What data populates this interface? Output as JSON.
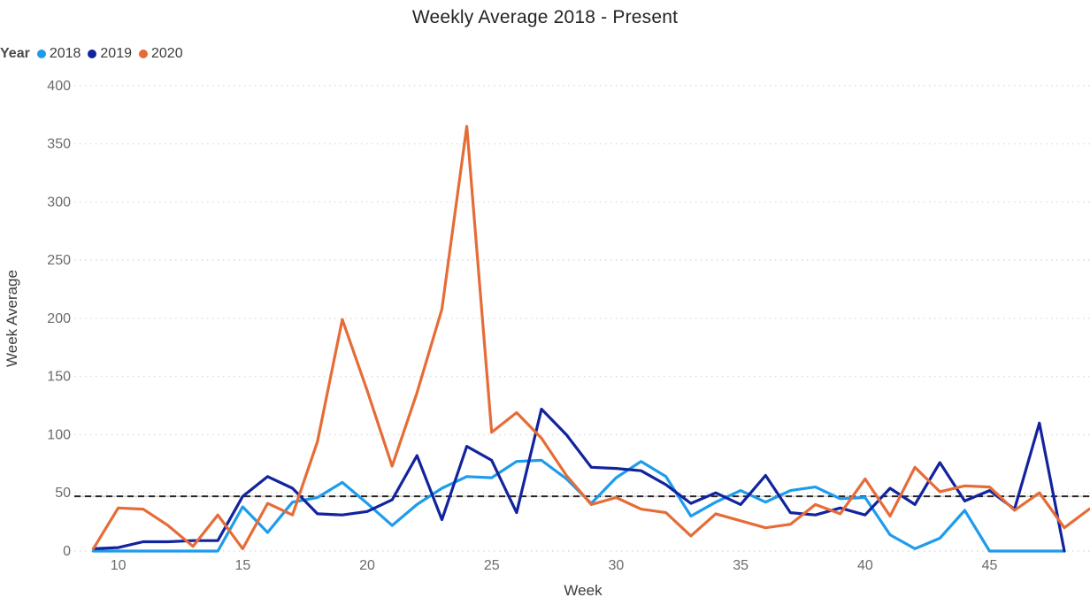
{
  "title": "Weekly Average 2018 - Present",
  "legend": {
    "title": "Year",
    "items": [
      {
        "label": "2018",
        "color": "#1E9CEB"
      },
      {
        "label": "2019",
        "color": "#12239E"
      },
      {
        "label": "2020",
        "color": "#E66C37"
      }
    ]
  },
  "chart_data": {
    "type": "line",
    "title": "Weekly Average 2018 - Present",
    "xlabel": "Week",
    "ylabel": "Week Average",
    "legend_title": "Year",
    "legend_position": "top-left",
    "grid": true,
    "gridline_style": "dotted",
    "xlim": [
      9,
      49
    ],
    "ylim": [
      0,
      400
    ],
    "x_ticks": [
      10,
      15,
      20,
      25,
      30,
      35,
      40,
      45
    ],
    "y_ticks": [
      0,
      50,
      100,
      150,
      200,
      250,
      300,
      350,
      400
    ],
    "reference_line": {
      "value": 47,
      "style": "dashed",
      "color": "#252423"
    },
    "series": [
      {
        "name": "2018",
        "color": "#1E9CEB",
        "x": [
          9,
          10,
          11,
          12,
          13,
          14,
          15,
          16,
          17,
          18,
          19,
          20,
          21,
          22,
          23,
          24,
          25,
          26,
          27,
          28,
          29,
          30,
          31,
          32,
          33,
          34,
          35,
          36,
          37,
          38,
          39,
          40,
          41,
          42,
          43,
          44,
          45,
          46,
          47,
          48
        ],
        "y": [
          0,
          0,
          0,
          0,
          0,
          0,
          38,
          16,
          42,
          46,
          59,
          41,
          22,
          40,
          54,
          64,
          63,
          77,
          78,
          62,
          41,
          63,
          77,
          64,
          30,
          42,
          52,
          42,
          52,
          55,
          45,
          46,
          14,
          2,
          11,
          35,
          0,
          0,
          0,
          0
        ]
      },
      {
        "name": "2019",
        "color": "#12239E",
        "x": [
          9,
          10,
          11,
          12,
          13,
          14,
          15,
          16,
          17,
          18,
          19,
          20,
          21,
          22,
          23,
          24,
          25,
          26,
          27,
          28,
          29,
          30,
          31,
          32,
          33,
          34,
          35,
          36,
          37,
          38,
          39,
          40,
          41,
          42,
          43,
          44,
          45,
          46,
          47,
          48
        ],
        "y": [
          2,
          3,
          8,
          8,
          9,
          9,
          47,
          64,
          54,
          32,
          31,
          34,
          44,
          82,
          27,
          90,
          78,
          33,
          122,
          100,
          72,
          71,
          69,
          57,
          41,
          50,
          40,
          65,
          33,
          31,
          37,
          31,
          54,
          40,
          76,
          43,
          52,
          36,
          110,
          0
        ]
      },
      {
        "name": "2020",
        "color": "#E66C37",
        "x": [
          9,
          10,
          11,
          12,
          13,
          14,
          15,
          16,
          17,
          18,
          19,
          20,
          21,
          22,
          23,
          24,
          25,
          26,
          27,
          28,
          29,
          30,
          31,
          32,
          33,
          34,
          35,
          36,
          37,
          38,
          39,
          40,
          41,
          42,
          43,
          44,
          45,
          46,
          47,
          48,
          49
        ],
        "y": [
          2,
          37,
          36,
          22,
          4,
          31,
          2,
          41,
          31,
          94,
          199,
          138,
          73,
          136,
          208,
          365,
          102,
          119,
          97,
          65,
          40,
          46,
          36,
          33,
          13,
          32,
          26,
          20,
          23,
          40,
          32,
          62,
          30,
          72,
          51,
          56,
          55,
          35,
          50,
          20,
          36
        ]
      }
    ]
  },
  "axis_colors": {
    "tick_label": "#6b6b6b",
    "gridline": "#dcdcdc"
  }
}
